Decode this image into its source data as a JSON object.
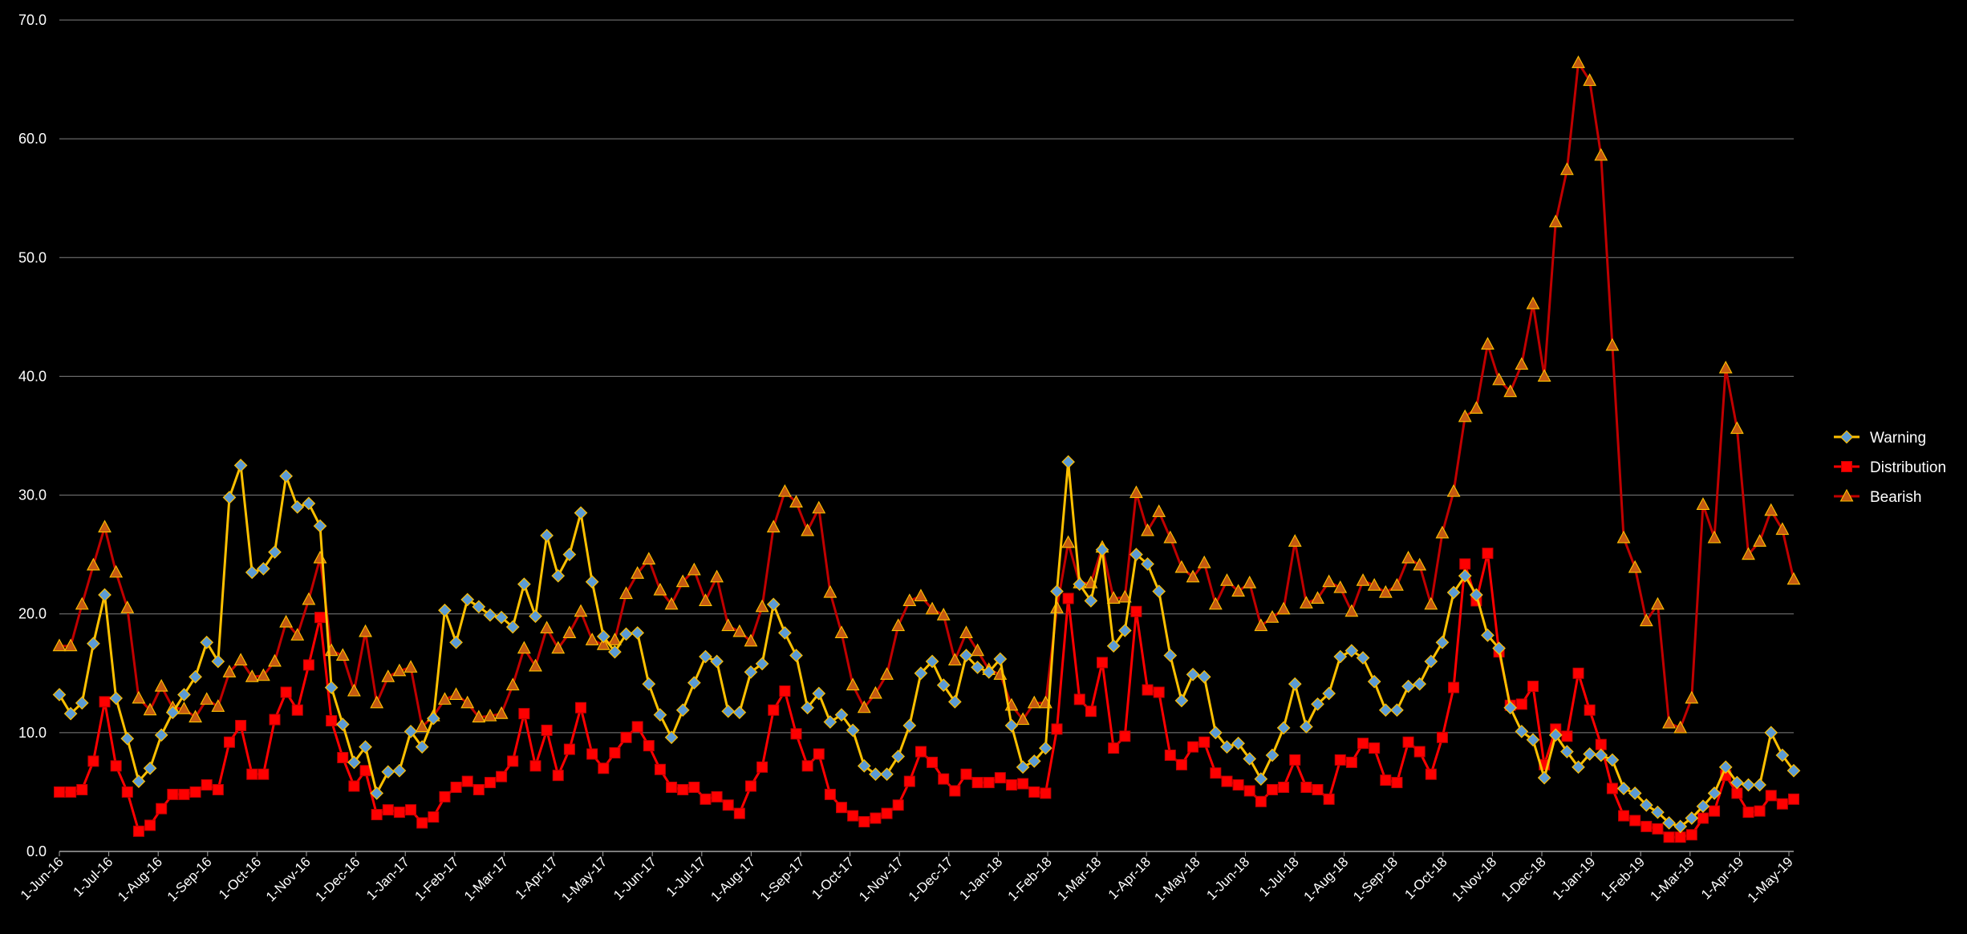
{
  "chart_data": {
    "type": "line",
    "title": "",
    "xlabel": "",
    "ylabel": "",
    "ylim": [
      0,
      70
    ],
    "y_ticks": [
      "0.0",
      "10.0",
      "20.0",
      "30.0",
      "40.0",
      "50.0",
      "60.0",
      "70.0"
    ],
    "grid": "horizontal",
    "legend_position": "right",
    "x_tick_labels": [
      "1-Jun-16",
      "1-Jul-16",
      "1-Aug-16",
      "1-Sep-16",
      "1-Oct-16",
      "1-Nov-16",
      "1-Dec-16",
      "1-Jan-17",
      "1-Feb-17",
      "1-Mar-17",
      "1-Apr-17",
      "1-May-17",
      "1-Jun-17",
      "1-Jul-17",
      "1-Aug-17",
      "1-Sep-17",
      "1-Oct-17",
      "1-Nov-17",
      "1-Dec-17",
      "1-Jan-18",
      "1-Feb-18",
      "1-Mar-18",
      "1-Apr-18",
      "1-May-18",
      "1-Jun-18",
      "1-Jul-18",
      "1-Aug-18",
      "1-Sep-18",
      "1-Oct-18",
      "1-Nov-18",
      "1-Dec-18",
      "1-Jan-19",
      "1-Feb-19",
      "1-Mar-19",
      "1-Apr-19",
      "1-May-19"
    ],
    "series": [
      {
        "name": "Warning",
        "line_color": "#FFC000",
        "marker": "diamond",
        "marker_color": "#5B9BD5",
        "values": [
          13.2,
          11.6,
          12.5,
          17.5,
          21.6,
          12.9,
          9.5,
          5.9,
          7.0,
          9.8,
          11.7,
          13.2,
          14.7,
          17.6,
          16.0,
          29.8,
          32.5,
          23.5,
          23.8,
          25.2,
          31.6,
          29.0,
          29.3,
          27.4,
          13.8,
          10.7,
          7.5,
          8.8,
          4.9,
          6.7,
          6.8,
          10.1,
          8.8,
          11.2,
          20.3,
          17.6,
          21.2,
          20.6,
          19.9,
          19.7,
          18.9,
          22.5,
          19.8,
          26.6,
          23.2,
          25.0,
          28.5,
          22.7,
          18.1,
          16.8,
          18.3,
          18.4,
          14.1,
          11.5,
          9.6,
          11.9,
          14.2,
          16.4,
          16.0,
          11.8,
          11.7,
          15.1,
          15.8,
          20.8,
          18.4,
          16.5,
          12.1,
          13.3,
          10.9,
          11.5,
          10.2,
          7.2,
          6.5,
          6.5,
          8.0,
          10.6,
          15.0,
          16.0,
          14.0,
          12.6,
          16.5,
          15.5,
          15.1,
          16.2,
          10.6,
          7.1,
          7.6,
          8.7,
          21.9,
          32.8,
          22.5,
          21.1,
          25.4,
          17.3,
          18.6,
          25.0,
          24.2,
          21.9,
          16.5,
          12.7,
          14.9,
          14.7,
          10.0,
          8.8,
          9.1,
          7.8,
          6.1,
          8.1,
          10.4,
          14.1,
          10.5,
          12.4,
          13.3,
          16.4,
          16.9,
          16.3,
          14.3,
          11.9,
          11.9,
          13.9,
          14.1,
          16.0,
          17.6,
          21.8,
          23.2,
          21.6,
          18.2,
          17.1,
          12.1,
          10.1,
          9.4,
          6.2,
          9.8,
          8.4,
          7.1,
          8.2,
          8.1,
          7.7,
          5.3,
          4.9,
          3.9,
          3.3,
          2.4,
          2.1,
          2.8,
          3.8,
          4.9,
          7.1,
          5.8,
          5.6,
          5.6,
          10.0,
          8.1,
          6.8
        ]
      },
      {
        "name": "Distribution",
        "line_color": "#FF0000",
        "marker": "square",
        "marker_color": "#FF0000",
        "values": [
          5.0,
          5.0,
          5.2,
          7.6,
          12.6,
          7.2,
          5.0,
          1.7,
          2.2,
          3.6,
          4.8,
          4.8,
          5.0,
          5.6,
          5.2,
          9.2,
          10.6,
          6.5,
          6.5,
          11.1,
          13.4,
          11.9,
          15.7,
          19.7,
          11.0,
          7.9,
          5.5,
          6.8,
          3.1,
          3.5,
          3.3,
          3.5,
          2.4,
          2.9,
          4.6,
          5.4,
          5.9,
          5.2,
          5.8,
          6.3,
          7.6,
          11.6,
          7.2,
          10.2,
          6.4,
          8.6,
          12.1,
          8.2,
          7.0,
          8.3,
          9.6,
          10.5,
          8.9,
          6.9,
          5.4,
          5.2,
          5.4,
          4.4,
          4.6,
          3.9,
          3.2,
          5.5,
          7.1,
          11.9,
          13.5,
          9.9,
          7.2,
          8.2,
          4.8,
          3.7,
          3.0,
          2.5,
          2.8,
          3.2,
          3.9,
          5.9,
          8.4,
          7.5,
          6.1,
          5.1,
          6.5,
          5.8,
          5.8,
          6.2,
          5.6,
          5.7,
          5.0,
          4.9,
          10.3,
          21.3,
          12.8,
          11.8,
          15.9,
          8.7,
          9.7,
          20.2,
          13.6,
          13.4,
          8.1,
          7.3,
          8.8,
          9.2,
          6.6,
          5.9,
          5.6,
          5.1,
          4.2,
          5.2,
          5.4,
          7.7,
          5.4,
          5.2,
          4.4,
          7.7,
          7.5,
          9.1,
          8.7,
          6.0,
          5.8,
          9.2,
          8.4,
          6.5,
          9.6,
          13.8,
          24.2,
          21.1,
          25.1,
          16.8,
          12.3,
          12.4,
          13.9,
          7.3,
          10.3,
          9.7,
          15.0,
          11.9,
          9.0,
          5.3,
          3.0,
          2.6,
          2.1,
          1.9,
          1.2,
          1.2,
          1.4,
          2.8,
          3.4,
          6.4,
          4.9,
          3.3,
          3.4,
          4.7,
          4.0,
          4.4
        ]
      },
      {
        "name": "Bearish",
        "line_color": "#C00000",
        "marker": "triangle",
        "marker_color": "#C55A11",
        "values": [
          17.3,
          17.3,
          20.8,
          24.1,
          27.3,
          23.5,
          20.5,
          12.9,
          11.9,
          13.9,
          12.1,
          12.0,
          11.3,
          12.8,
          12.2,
          15.1,
          16.1,
          14.7,
          14.8,
          16.0,
          19.3,
          18.2,
          21.2,
          24.7,
          16.9,
          16.5,
          13.5,
          18.5,
          12.5,
          14.7,
          15.2,
          15.5,
          10.5,
          11.4,
          12.8,
          13.2,
          12.5,
          11.3,
          11.4,
          11.6,
          14.0,
          17.1,
          15.6,
          18.8,
          17.1,
          18.4,
          20.2,
          17.8,
          17.4,
          17.8,
          21.7,
          23.4,
          24.6,
          22.0,
          20.8,
          22.7,
          23.7,
          21.1,
          23.1,
          19.0,
          18.5,
          17.7,
          20.6,
          27.3,
          30.3,
          29.4,
          27.0,
          28.9,
          21.8,
          18.4,
          14.0,
          12.1,
          13.3,
          14.9,
          19.0,
          21.1,
          21.5,
          20.4,
          19.9,
          16.1,
          18.4,
          16.9,
          15.3,
          14.9,
          12.3,
          11.1,
          12.5,
          12.5,
          20.5,
          26.0,
          22.6,
          22.6,
          25.6,
          21.3,
          21.4,
          30.2,
          27.0,
          28.6,
          26.4,
          23.9,
          23.1,
          24.3,
          20.8,
          22.8,
          21.9,
          22.6,
          19.0,
          19.7,
          20.4,
          26.1,
          20.9,
          21.3,
          22.7,
          22.2,
          20.2,
          22.8,
          22.4,
          21.8,
          22.4,
          24.7,
          24.1,
          20.8,
          26.8,
          30.3,
          36.6,
          37.3,
          42.7,
          39.7,
          38.7,
          41.0,
          46.1,
          40.0,
          53.0,
          57.4,
          66.4,
          64.9,
          58.6,
          42.6,
          26.4,
          23.9,
          19.4,
          20.8,
          10.8,
          10.4,
          12.9,
          29.2,
          26.4,
          40.7,
          35.6,
          25.0,
          26.1,
          28.7,
          27.1,
          22.9
        ]
      }
    ]
  }
}
